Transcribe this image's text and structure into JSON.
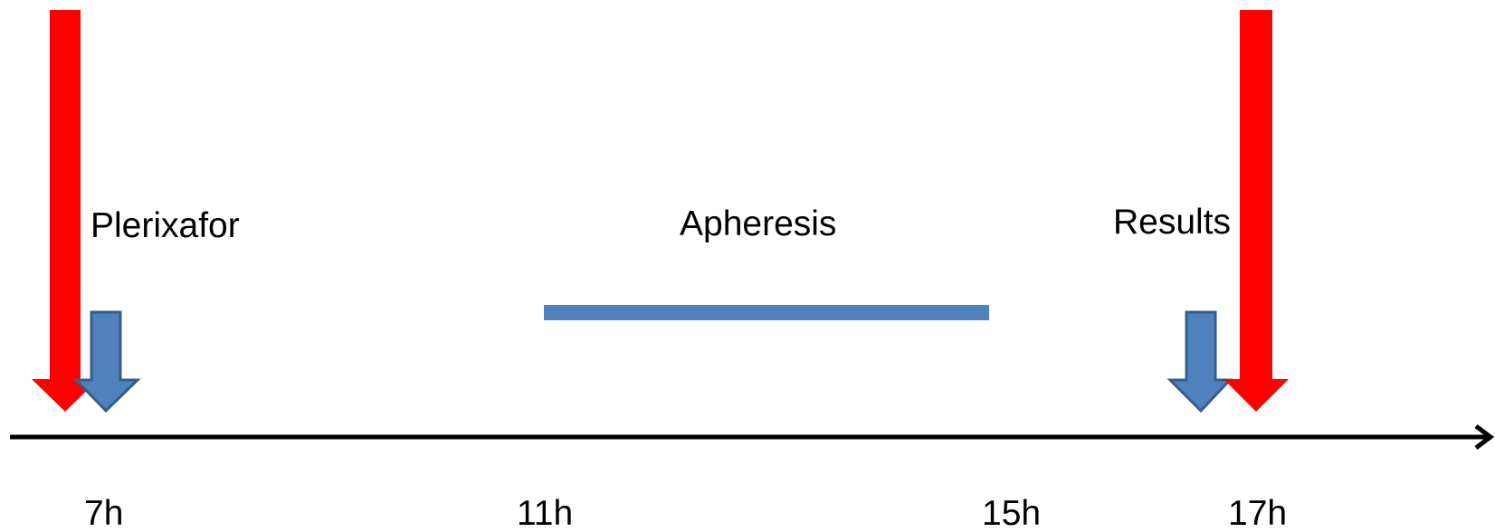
{
  "labels": {
    "plerixafor": "Plerixafor",
    "apheresis": "Apheresis",
    "results": "Results"
  },
  "times": [
    "7h",
    "11h",
    "15h",
    "17h"
  ]
}
